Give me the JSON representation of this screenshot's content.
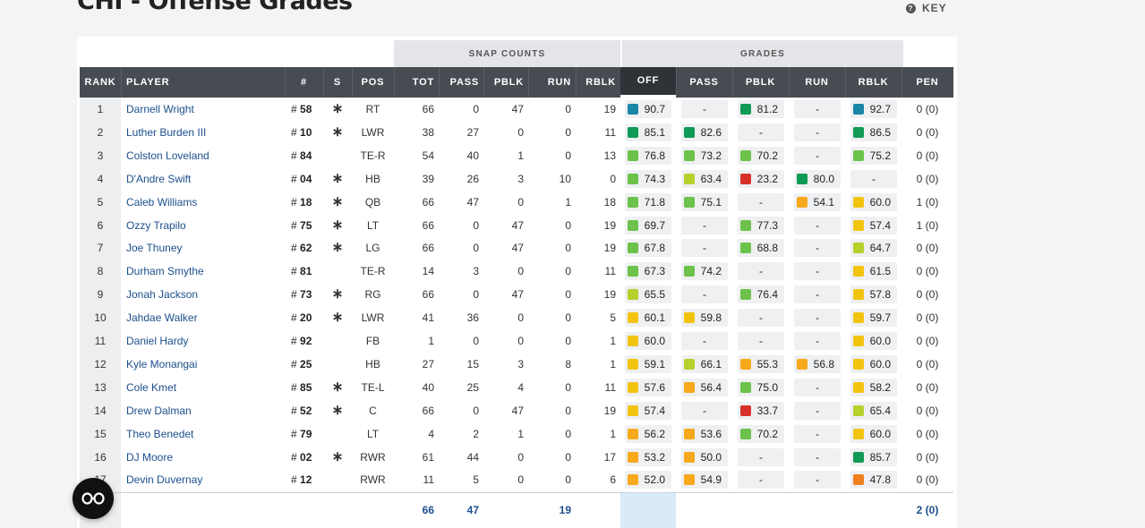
{
  "title": "CHI - Offense Grades",
  "key_label": "KEY",
  "groups": {
    "snap_counts": "SNAP COUNTS",
    "grades": "GRADES"
  },
  "headers": {
    "rank": "RANK",
    "player": "PLAYER",
    "number": "#",
    "starter": "S",
    "pos": "POS",
    "tot": "TOT",
    "pass": "PASS",
    "pblk": "PBLK",
    "run": "RUN",
    "rblk": "RBLK",
    "g_off": "OFF",
    "g_pass": "PASS",
    "g_pblk": "PBLK",
    "g_run": "RUN",
    "g_rblk": "RBLK",
    "pen": "PEN"
  },
  "colors": {
    "elite": "#1a86a8",
    "high": "#0f9a55",
    "good": "#6cc24a",
    "above": "#b5d12c",
    "avg": "#f2c40f",
    "below": "#f7a81b",
    "poor": "#f07f1d",
    "bad": "#d6322a"
  },
  "rows": [
    {
      "rank": "1",
      "player": "Darnell Wright",
      "num": "58",
      "starter": "∗",
      "pos": "RT",
      "tot": "66",
      "pass": "0",
      "pblk": "47",
      "run": "0",
      "rblk": "19",
      "g_off": {
        "v": "90.7",
        "c": "elite"
      },
      "g_pass": {
        "v": "-",
        "c": ""
      },
      "g_pblk": {
        "v": "81.2",
        "c": "high"
      },
      "g_run": {
        "v": "-",
        "c": ""
      },
      "g_rblk": {
        "v": "92.7",
        "c": "elite"
      },
      "pen": "0 (0)"
    },
    {
      "rank": "2",
      "player": "Luther Burden III",
      "num": "10",
      "starter": "∗",
      "pos": "LWR",
      "tot": "38",
      "pass": "27",
      "pblk": "0",
      "run": "0",
      "rblk": "11",
      "g_off": {
        "v": "85.1",
        "c": "high"
      },
      "g_pass": {
        "v": "82.6",
        "c": "high"
      },
      "g_pblk": {
        "v": "-",
        "c": ""
      },
      "g_run": {
        "v": "-",
        "c": ""
      },
      "g_rblk": {
        "v": "86.5",
        "c": "high"
      },
      "pen": "0 (0)"
    },
    {
      "rank": "3",
      "player": "Colston Loveland",
      "num": "84",
      "starter": "",
      "pos": "TE-R",
      "tot": "54",
      "pass": "40",
      "pblk": "1",
      "run": "0",
      "rblk": "13",
      "g_off": {
        "v": "76.8",
        "c": "good"
      },
      "g_pass": {
        "v": "73.2",
        "c": "good"
      },
      "g_pblk": {
        "v": "70.2",
        "c": "good"
      },
      "g_run": {
        "v": "-",
        "c": ""
      },
      "g_rblk": {
        "v": "75.2",
        "c": "good"
      },
      "pen": "0 (0)"
    },
    {
      "rank": "4",
      "player": "D'Andre Swift",
      "num": "04",
      "starter": "∗",
      "pos": "HB",
      "tot": "39",
      "pass": "26",
      "pblk": "3",
      "run": "10",
      "rblk": "0",
      "g_off": {
        "v": "74.3",
        "c": "good"
      },
      "g_pass": {
        "v": "63.4",
        "c": "above"
      },
      "g_pblk": {
        "v": "23.2",
        "c": "bad"
      },
      "g_run": {
        "v": "80.0",
        "c": "high"
      },
      "g_rblk": {
        "v": "-",
        "c": ""
      },
      "pen": "0 (0)"
    },
    {
      "rank": "5",
      "player": "Caleb Williams",
      "num": "18",
      "starter": "∗",
      "pos": "QB",
      "tot": "66",
      "pass": "47",
      "pblk": "0",
      "run": "1",
      "rblk": "18",
      "g_off": {
        "v": "71.8",
        "c": "good"
      },
      "g_pass": {
        "v": "75.1",
        "c": "good"
      },
      "g_pblk": {
        "v": "-",
        "c": ""
      },
      "g_run": {
        "v": "54.1",
        "c": "below"
      },
      "g_rblk": {
        "v": "60.0",
        "c": "avg"
      },
      "pen": "1 (0)"
    },
    {
      "rank": "6",
      "player": "Ozzy Trapilo",
      "num": "75",
      "starter": "∗",
      "pos": "LT",
      "tot": "66",
      "pass": "0",
      "pblk": "47",
      "run": "0",
      "rblk": "19",
      "g_off": {
        "v": "69.7",
        "c": "good"
      },
      "g_pass": {
        "v": "-",
        "c": ""
      },
      "g_pblk": {
        "v": "77.3",
        "c": "good"
      },
      "g_run": {
        "v": "-",
        "c": ""
      },
      "g_rblk": {
        "v": "57.4",
        "c": "avg"
      },
      "pen": "1 (0)"
    },
    {
      "rank": "7",
      "player": "Joe Thuney",
      "num": "62",
      "starter": "∗",
      "pos": "LG",
      "tot": "66",
      "pass": "0",
      "pblk": "47",
      "run": "0",
      "rblk": "19",
      "g_off": {
        "v": "67.8",
        "c": "good"
      },
      "g_pass": {
        "v": "-",
        "c": ""
      },
      "g_pblk": {
        "v": "68.8",
        "c": "good"
      },
      "g_run": {
        "v": "-",
        "c": ""
      },
      "g_rblk": {
        "v": "64.7",
        "c": "above"
      },
      "pen": "0 (0)"
    },
    {
      "rank": "8",
      "player": "Durham Smythe",
      "num": "81",
      "starter": "",
      "pos": "TE-R",
      "tot": "14",
      "pass": "3",
      "pblk": "0",
      "run": "0",
      "rblk": "11",
      "g_off": {
        "v": "67.3",
        "c": "good"
      },
      "g_pass": {
        "v": "74.2",
        "c": "good"
      },
      "g_pblk": {
        "v": "-",
        "c": ""
      },
      "g_run": {
        "v": "-",
        "c": ""
      },
      "g_rblk": {
        "v": "61.5",
        "c": "avg"
      },
      "pen": "0 (0)"
    },
    {
      "rank": "9",
      "player": "Jonah Jackson",
      "num": "73",
      "starter": "∗",
      "pos": "RG",
      "tot": "66",
      "pass": "0",
      "pblk": "47",
      "run": "0",
      "rblk": "19",
      "g_off": {
        "v": "65.5",
        "c": "above"
      },
      "g_pass": {
        "v": "-",
        "c": ""
      },
      "g_pblk": {
        "v": "76.4",
        "c": "good"
      },
      "g_run": {
        "v": "-",
        "c": ""
      },
      "g_rblk": {
        "v": "57.8",
        "c": "avg"
      },
      "pen": "0 (0)"
    },
    {
      "rank": "10",
      "player": "Jahdae Walker",
      "num": "20",
      "starter": "∗",
      "pos": "LWR",
      "tot": "41",
      "pass": "36",
      "pblk": "0",
      "run": "0",
      "rblk": "5",
      "g_off": {
        "v": "60.1",
        "c": "avg"
      },
      "g_pass": {
        "v": "59.8",
        "c": "avg"
      },
      "g_pblk": {
        "v": "-",
        "c": ""
      },
      "g_run": {
        "v": "-",
        "c": ""
      },
      "g_rblk": {
        "v": "59.7",
        "c": "avg"
      },
      "pen": "0 (0)"
    },
    {
      "rank": "11",
      "player": "Daniel Hardy",
      "num": "92",
      "starter": "",
      "pos": "FB",
      "tot": "1",
      "pass": "0",
      "pblk": "0",
      "run": "0",
      "rblk": "1",
      "g_off": {
        "v": "60.0",
        "c": "avg"
      },
      "g_pass": {
        "v": "-",
        "c": ""
      },
      "g_pblk": {
        "v": "-",
        "c": ""
      },
      "g_run": {
        "v": "-",
        "c": ""
      },
      "g_rblk": {
        "v": "60.0",
        "c": "avg"
      },
      "pen": "0 (0)"
    },
    {
      "rank": "12",
      "player": "Kyle Monangai",
      "num": "25",
      "starter": "",
      "pos": "HB",
      "tot": "27",
      "pass": "15",
      "pblk": "3",
      "run": "8",
      "rblk": "1",
      "g_off": {
        "v": "59.1",
        "c": "avg"
      },
      "g_pass": {
        "v": "66.1",
        "c": "above"
      },
      "g_pblk": {
        "v": "55.3",
        "c": "below"
      },
      "g_run": {
        "v": "56.8",
        "c": "below"
      },
      "g_rblk": {
        "v": "60.0",
        "c": "avg"
      },
      "pen": "0 (0)"
    },
    {
      "rank": "13",
      "player": "Cole Kmet",
      "num": "85",
      "starter": "∗",
      "pos": "TE-L",
      "tot": "40",
      "pass": "25",
      "pblk": "4",
      "run": "0",
      "rblk": "11",
      "g_off": {
        "v": "57.6",
        "c": "avg"
      },
      "g_pass": {
        "v": "56.4",
        "c": "below"
      },
      "g_pblk": {
        "v": "75.0",
        "c": "good"
      },
      "g_run": {
        "v": "-",
        "c": ""
      },
      "g_rblk": {
        "v": "58.2",
        "c": "avg"
      },
      "pen": "0 (0)"
    },
    {
      "rank": "14",
      "player": "Drew Dalman",
      "num": "52",
      "starter": "∗",
      "pos": "C",
      "tot": "66",
      "pass": "0",
      "pblk": "47",
      "run": "0",
      "rblk": "19",
      "g_off": {
        "v": "57.4",
        "c": "avg"
      },
      "g_pass": {
        "v": "-",
        "c": ""
      },
      "g_pblk": {
        "v": "33.7",
        "c": "bad"
      },
      "g_run": {
        "v": "-",
        "c": ""
      },
      "g_rblk": {
        "v": "65.4",
        "c": "above"
      },
      "pen": "0 (0)"
    },
    {
      "rank": "15",
      "player": "Theo Benedet",
      "num": "79",
      "starter": "",
      "pos": "LT",
      "tot": "4",
      "pass": "2",
      "pblk": "1",
      "run": "0",
      "rblk": "1",
      "g_off": {
        "v": "56.2",
        "c": "below"
      },
      "g_pass": {
        "v": "53.6",
        "c": "below"
      },
      "g_pblk": {
        "v": "70.2",
        "c": "good"
      },
      "g_run": {
        "v": "-",
        "c": ""
      },
      "g_rblk": {
        "v": "60.0",
        "c": "avg"
      },
      "pen": "0 (0)"
    },
    {
      "rank": "16",
      "player": "DJ Moore",
      "num": "02",
      "starter": "∗",
      "pos": "RWR",
      "tot": "61",
      "pass": "44",
      "pblk": "0",
      "run": "0",
      "rblk": "17",
      "g_off": {
        "v": "53.2",
        "c": "below"
      },
      "g_pass": {
        "v": "50.0",
        "c": "below"
      },
      "g_pblk": {
        "v": "-",
        "c": ""
      },
      "g_run": {
        "v": "-",
        "c": ""
      },
      "g_rblk": {
        "v": "85.7",
        "c": "high"
      },
      "pen": "0 (0)"
    },
    {
      "rank": "17",
      "player": "Devin Duvernay",
      "num": "12",
      "starter": "",
      "pos": "RWR",
      "tot": "11",
      "pass": "5",
      "pblk": "0",
      "run": "0",
      "rblk": "6",
      "g_off": {
        "v": "52.0",
        "c": "below"
      },
      "g_pass": {
        "v": "54.9",
        "c": "below"
      },
      "g_pblk": {
        "v": "-",
        "c": ""
      },
      "g_run": {
        "v": "-",
        "c": ""
      },
      "g_rblk": {
        "v": "47.8",
        "c": "poor"
      },
      "pen": "0 (0)"
    }
  ],
  "totals": {
    "tot": "66",
    "pass": "47",
    "rblk": "19",
    "pen": "2 (0)"
  },
  "fab_icon": "glasses-icon"
}
